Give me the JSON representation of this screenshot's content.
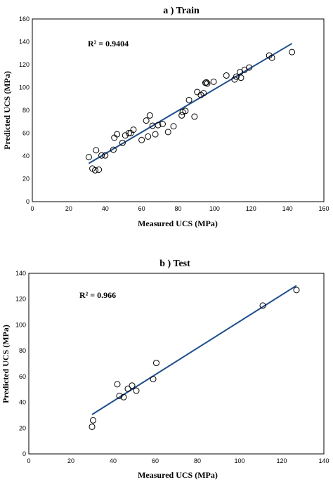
{
  "chart_data": [
    {
      "type": "scatter",
      "title": "a ) Train",
      "xlabel": "Measured UCS (MPa)",
      "ylabel": "Predicted UCS (MPa)",
      "xlim": [
        0,
        160
      ],
      "ylim": [
        0,
        160
      ],
      "xticks": [
        0,
        20,
        40,
        60,
        80,
        100,
        120,
        140,
        160
      ],
      "yticks": [
        0,
        20,
        40,
        60,
        80,
        100,
        120,
        140,
        160
      ],
      "annotation": "R² = 0.9404",
      "fit_line": {
        "x": [
          31,
          142.5
        ],
        "y": [
          33.5,
          138.5
        ]
      },
      "points": [
        [
          31,
          39
        ],
        [
          33,
          29
        ],
        [
          34.5,
          27.5
        ],
        [
          35,
          45
        ],
        [
          36.5,
          28
        ],
        [
          38,
          40.5
        ],
        [
          40,
          40.5
        ],
        [
          44.5,
          45.5
        ],
        [
          45,
          56
        ],
        [
          46.5,
          59
        ],
        [
          49.5,
          51.5
        ],
        [
          51,
          58
        ],
        [
          53,
          60
        ],
        [
          54,
          60
        ],
        [
          55.5,
          63
        ],
        [
          60,
          54
        ],
        [
          62.5,
          71
        ],
        [
          63.5,
          57
        ],
        [
          64.5,
          75.5
        ],
        [
          66,
          66.5
        ],
        [
          67.5,
          59
        ],
        [
          69,
          67
        ],
        [
          71.5,
          68
        ],
        [
          74.5,
          61
        ],
        [
          77.5,
          66
        ],
        [
          82,
          75.5
        ],
        [
          82.5,
          78.5
        ],
        [
          84,
          79.5
        ],
        [
          86,
          89
        ],
        [
          89,
          74.5
        ],
        [
          90.5,
          96
        ],
        [
          92.5,
          93.5
        ],
        [
          94,
          95
        ],
        [
          95,
          104
        ],
        [
          95.5,
          104.5
        ],
        [
          96,
          103.5
        ],
        [
          99.5,
          105
        ],
        [
          106.5,
          110.5
        ],
        [
          111,
          107
        ],
        [
          112,
          109.5
        ],
        [
          114,
          113.5
        ],
        [
          114.5,
          108.5
        ],
        [
          116.5,
          115.5
        ],
        [
          119,
          117.5
        ],
        [
          130,
          128
        ],
        [
          131.5,
          126
        ],
        [
          142.5,
          131
        ]
      ]
    },
    {
      "type": "scatter",
      "title": "b ) Test",
      "xlabel": "Measured UCS (MPa)",
      "ylabel": "Predicted UCS (MPa)",
      "xlim": [
        0,
        140
      ],
      "ylim": [
        0,
        140
      ],
      "xticks": [
        0,
        20,
        40,
        60,
        80,
        100,
        120,
        140
      ],
      "yticks": [
        0,
        20,
        40,
        60,
        80,
        100,
        120,
        140
      ],
      "annotation": "R² = 0.966",
      "fit_line": {
        "x": [
          30,
          127
        ],
        "y": [
          30.5,
          130.5
        ]
      },
      "points": [
        [
          30,
          21
        ],
        [
          30.5,
          26
        ],
        [
          42,
          54
        ],
        [
          43,
          45
        ],
        [
          45,
          44
        ],
        [
          47,
          50.5
        ],
        [
          49,
          53
        ],
        [
          51,
          49
        ],
        [
          59,
          58
        ],
        [
          60.5,
          70.5
        ],
        [
          111,
          115
        ],
        [
          127,
          127
        ]
      ]
    }
  ]
}
